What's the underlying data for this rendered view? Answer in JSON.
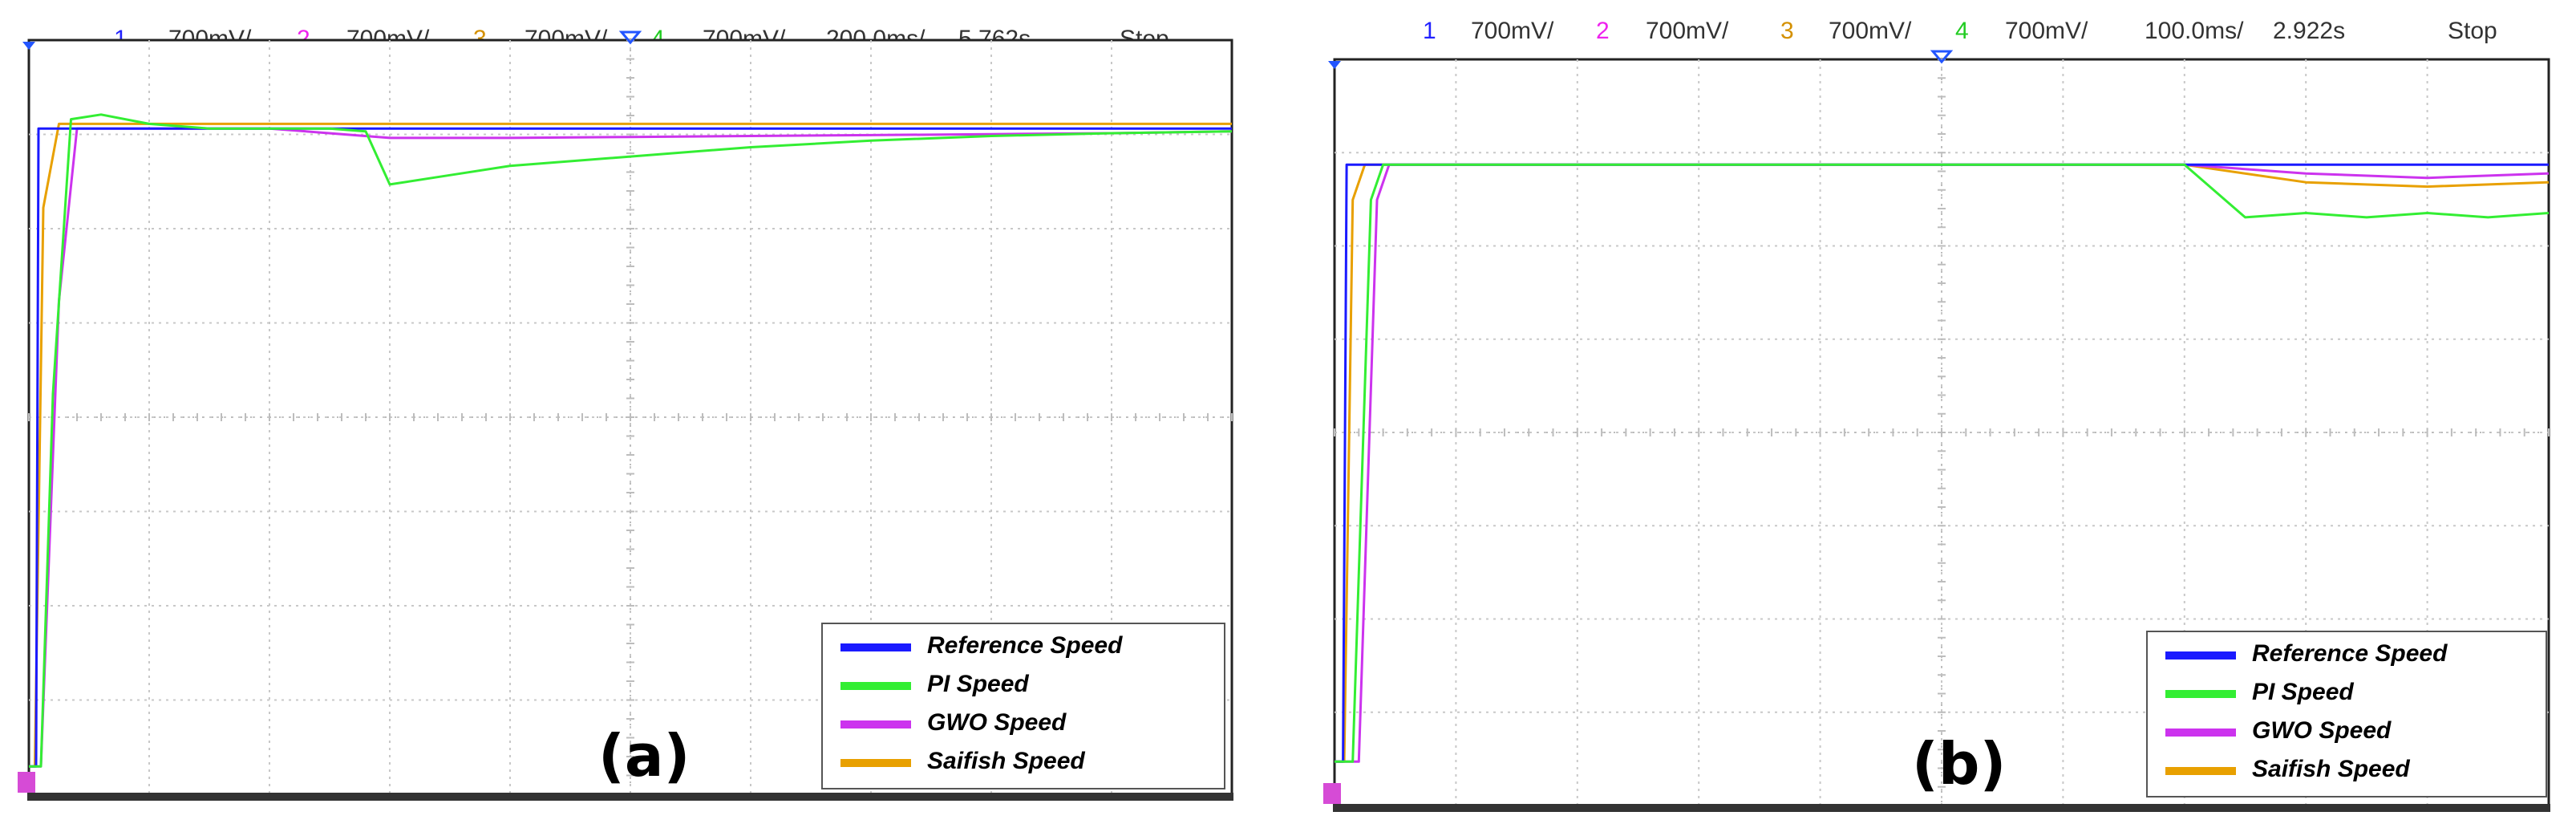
{
  "panels": [
    {
      "label": "(a)",
      "header": {
        "ch1": "1",
        "ch1_scale": "700mV/",
        "ch2": "2",
        "ch2_scale": "700mV/",
        "ch3": "3",
        "ch3_scale": "700mV/",
        "ch4": "4",
        "ch4_scale": "700mV/",
        "timebase": "200.0ms/",
        "time": "5.762s",
        "status": "Stop"
      },
      "legend": [
        "Reference Speed",
        "PI Speed",
        "GWO Speed",
        "Saifish Speed"
      ]
    },
    {
      "label": "(b)",
      "header": {
        "ch1": "1",
        "ch1_scale": "700mV/",
        "ch2": "2",
        "ch2_scale": "700mV/",
        "ch3": "3",
        "ch3_scale": "700mV/",
        "ch4": "4",
        "ch4_scale": "700mV/",
        "timebase": "100.0ms/",
        "time": "2.922s",
        "status": "Stop"
      },
      "legend": [
        "Reference Speed",
        "PI Speed",
        "GWO Speed",
        "Saifish Speed"
      ]
    }
  ],
  "colors": {
    "reference": "#1a1aff",
    "pi": "#33ee33",
    "gwo": "#cc33ee",
    "saifish": "#e8a000",
    "ch1_text": "#2222ff",
    "ch2_text": "#ee22ee",
    "ch3_text": "#d49000",
    "ch4_text": "#22cc22",
    "grid": "#c8c8c8",
    "frame": "#222222"
  },
  "chart_data": [
    {
      "type": "line",
      "title": "",
      "xlabel": "",
      "ylabel": "",
      "x_divisions": 10,
      "y_divisions": 8,
      "grid": true,
      "legend_position": "bottom-right",
      "series": [
        {
          "name": "Reference Speed",
          "x": [
            0,
            0.06,
            0.08,
            10
          ],
          "y": [
            0,
            0,
            6.85,
            6.85
          ]
        },
        {
          "name": "PI Speed",
          "x": [
            0,
            0.1,
            0.2,
            0.35,
            0.6,
            1.0,
            1.5,
            2.0,
            2.5,
            2.8,
            3.0,
            3.5,
            4.0,
            5.0,
            6.0,
            7.0,
            8.0,
            9.0,
            10.0
          ],
          "y": [
            0,
            0,
            4.0,
            6.95,
            7.0,
            6.9,
            6.85,
            6.85,
            6.85,
            6.82,
            6.25,
            6.35,
            6.45,
            6.55,
            6.65,
            6.72,
            6.77,
            6.8,
            6.82
          ]
        },
        {
          "name": "GWO Speed",
          "x": [
            0,
            0.1,
            0.25,
            0.4,
            1.0,
            2.0,
            3.0,
            4.0,
            5.0,
            6.0,
            7.0,
            8.0,
            9.0,
            10.0
          ],
          "y": [
            0,
            0,
            5.0,
            6.85,
            6.85,
            6.85,
            6.75,
            6.75,
            6.76,
            6.77,
            6.78,
            6.79,
            6.8,
            6.82
          ]
        },
        {
          "name": "Saifish Speed",
          "x": [
            0,
            0.05,
            0.12,
            0.25,
            2.0,
            4.0,
            6.0,
            8.0,
            10.0
          ],
          "y": [
            0,
            0,
            6.0,
            6.9,
            6.9,
            6.9,
            6.9,
            6.9,
            6.9
          ]
        }
      ]
    },
    {
      "type": "line",
      "title": "",
      "xlabel": "",
      "ylabel": "",
      "x_divisions": 10,
      "y_divisions": 8,
      "grid": true,
      "legend_position": "bottom-right",
      "series": [
        {
          "name": "Reference Speed",
          "x": [
            0,
            0.07,
            0.1,
            10
          ],
          "y": [
            -0.4,
            -0.4,
            6.4,
            6.4
          ]
        },
        {
          "name": "PI Speed",
          "x": [
            0,
            0.15,
            0.3,
            0.4,
            2.0,
            4.0,
            6.0,
            7.0,
            7.5,
            8.0,
            8.5,
            9.0,
            9.5,
            10.0
          ],
          "y": [
            -0.4,
            -0.4,
            6.0,
            6.4,
            6.4,
            6.4,
            6.4,
            6.4,
            5.8,
            5.85,
            5.8,
            5.85,
            5.8,
            5.85
          ]
        },
        {
          "name": "GWO Speed",
          "x": [
            0,
            0.2,
            0.35,
            0.45,
            2.0,
            4.0,
            6.0,
            7.0,
            8.0,
            9.0,
            10.0
          ],
          "y": [
            -0.4,
            -0.4,
            6.0,
            6.4,
            6.4,
            6.4,
            6.4,
            6.4,
            6.3,
            6.25,
            6.3
          ]
        },
        {
          "name": "Saifish Speed",
          "x": [
            0,
            0.08,
            0.15,
            0.25,
            2.0,
            4.0,
            6.0,
            7.0,
            8.0,
            9.0,
            10.0
          ],
          "y": [
            -0.4,
            -0.4,
            6.0,
            6.4,
            6.4,
            6.4,
            6.4,
            6.4,
            6.2,
            6.15,
            6.2
          ]
        }
      ]
    }
  ]
}
